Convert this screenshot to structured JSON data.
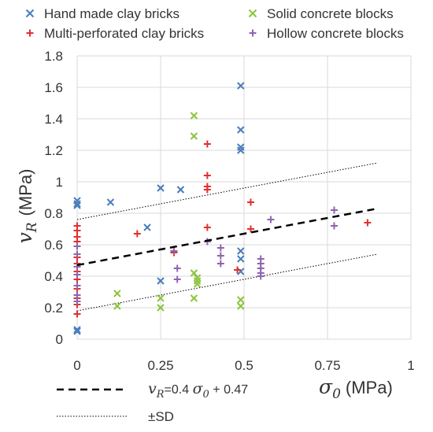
{
  "chart_data": {
    "type": "scatter",
    "xlabel": {
      "symbol": "σ",
      "subscript": "0",
      "unit": "(MPa)"
    },
    "ylabel": {
      "symbol": "v",
      "subscript": "R",
      "unit": "(MPa)"
    },
    "xlim": [
      0,
      1
    ],
    "ylim": [
      0,
      1.8
    ],
    "x_ticks": [
      "0",
      "0.25",
      "0.5",
      "0.75",
      "1"
    ],
    "y_ticks": [
      "0",
      "0.2",
      "0.4",
      "0.6",
      "0.8",
      "1",
      "1.2",
      "1.4",
      "1.6",
      "1.8"
    ],
    "x_tick_values": [
      0,
      0.25,
      0.5,
      0.75,
      1
    ],
    "y_tick_values": [
      0,
      0.2,
      0.4,
      0.6,
      0.8,
      1.0,
      1.2,
      1.4,
      1.6,
      1.8
    ],
    "grid": true,
    "legend_position": "top",
    "series": [
      {
        "name": "Hand made clay bricks",
        "marker": "x",
        "color": "#4a7ebb",
        "points": [
          [
            0,
            0.05
          ],
          [
            0,
            0.06
          ],
          [
            0,
            0.85
          ],
          [
            0,
            0.86
          ],
          [
            0,
            0.88
          ],
          [
            0.1,
            0.87
          ],
          [
            0.21,
            0.71
          ],
          [
            0.25,
            0.96
          ],
          [
            0.31,
            0.95
          ],
          [
            0.25,
            0.37
          ],
          [
            0.49,
            1.61
          ],
          [
            0.49,
            1.33
          ],
          [
            0.49,
            1.22
          ],
          [
            0.49,
            1.2
          ],
          [
            0.49,
            0.56
          ],
          [
            0.49,
            0.51
          ],
          [
            0.49,
            0.43
          ]
        ]
      },
      {
        "name": "Multi-perforated clay bricks",
        "marker": "+",
        "color": "#e03030",
        "points": [
          [
            0,
            0.72
          ],
          [
            0,
            0.69
          ],
          [
            0,
            0.65
          ],
          [
            0,
            0.62
          ],
          [
            0,
            0.59
          ],
          [
            0,
            0.52
          ],
          [
            0,
            0.48
          ],
          [
            0,
            0.43
          ],
          [
            0,
            0.38
          ],
          [
            0,
            0.32
          ],
          [
            0,
            0.26
          ],
          [
            0,
            0.22
          ],
          [
            0,
            0.16
          ],
          [
            0.18,
            0.67
          ],
          [
            0.29,
            0.55
          ],
          [
            0.39,
            1.24
          ],
          [
            0.39,
            1.04
          ],
          [
            0.39,
            0.97
          ],
          [
            0.39,
            0.95
          ],
          [
            0.39,
            0.71
          ],
          [
            0.48,
            0.44
          ],
          [
            0.52,
            0.87
          ],
          [
            0.52,
            0.7
          ],
          [
            0.87,
            0.74
          ]
        ]
      },
      {
        "name": "Solid concrete blocks",
        "marker": "x",
        "color": "#8cc43c",
        "points": [
          [
            0.12,
            0.29
          ],
          [
            0.12,
            0.21
          ],
          [
            0.25,
            0.26
          ],
          [
            0.25,
            0.2
          ],
          [
            0.35,
            1.42
          ],
          [
            0.35,
            1.29
          ],
          [
            0.35,
            0.42
          ],
          [
            0.35,
            0.26
          ],
          [
            0.36,
            0.39
          ],
          [
            0.36,
            0.37
          ],
          [
            0.36,
            0.35
          ],
          [
            0.49,
            0.25
          ],
          [
            0.49,
            0.21
          ]
        ]
      },
      {
        "name": "Hollow concrete blocks",
        "marker": "+",
        "color": "#8e64b0",
        "points": [
          [
            0,
            0.59
          ],
          [
            0,
            0.54
          ],
          [
            0,
            0.46
          ],
          [
            0,
            0.41
          ],
          [
            0,
            0.34
          ],
          [
            0,
            0.28
          ],
          [
            0,
            0.24
          ],
          [
            0.29,
            0.56
          ],
          [
            0.3,
            0.45
          ],
          [
            0.3,
            0.38
          ],
          [
            0.39,
            0.62
          ],
          [
            0.43,
            0.58
          ],
          [
            0.43,
            0.53
          ],
          [
            0.43,
            0.48
          ],
          [
            0.55,
            0.51
          ],
          [
            0.55,
            0.48
          ],
          [
            0.55,
            0.45
          ],
          [
            0.55,
            0.42
          ],
          [
            0.55,
            0.4
          ],
          [
            0.58,
            0.76
          ],
          [
            0.77,
            0.82
          ],
          [
            0.77,
            0.72
          ]
        ]
      }
    ],
    "fit_line": {
      "label": {
        "y_symbol": "v",
        "y_sub": "R",
        "eq_part": "=0.4 ",
        "x_symbol": "σ",
        "x_sub": "0",
        "const_part": " + 0.47"
      },
      "slope": 0.4,
      "intercept": 0.47,
      "x_range": [
        0,
        0.9
      ]
    },
    "sd_band": {
      "label": "±SD",
      "offset": 0.29,
      "x_range": [
        0,
        0.9
      ]
    }
  }
}
